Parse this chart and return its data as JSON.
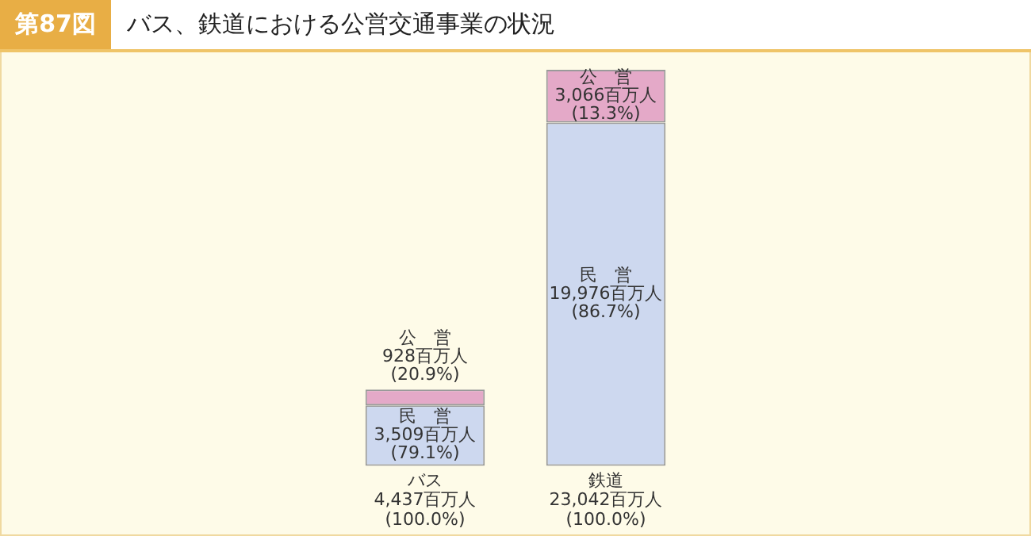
{
  "chart_data": {
    "type": "bar",
    "stacked": true,
    "title": "バス、鉄道における公営交通事業の状況",
    "annotations": [
      "第87図"
    ],
    "categories": [
      "バス",
      "鉄道"
    ],
    "series": [
      {
        "name": "民　営",
        "color": "#cdd8ef",
        "values": [
          3509,
          19976
        ],
        "value_labels": [
          "3,509百万人\n(79.1%)",
          "19,976百万人\n(86.7%)"
        ]
      },
      {
        "name": "公　営",
        "color": "#e4a9c8",
        "values": [
          928,
          3066
        ],
        "value_labels": [
          "928百万人\n(20.9%)",
          "3,066百万人\n(13.3%)"
        ]
      }
    ],
    "totals": [
      "4,437百万人\n(100.0%)",
      "23,042百万人\n(100.0%)"
    ],
    "grid": false,
    "legend": false
  }
}
